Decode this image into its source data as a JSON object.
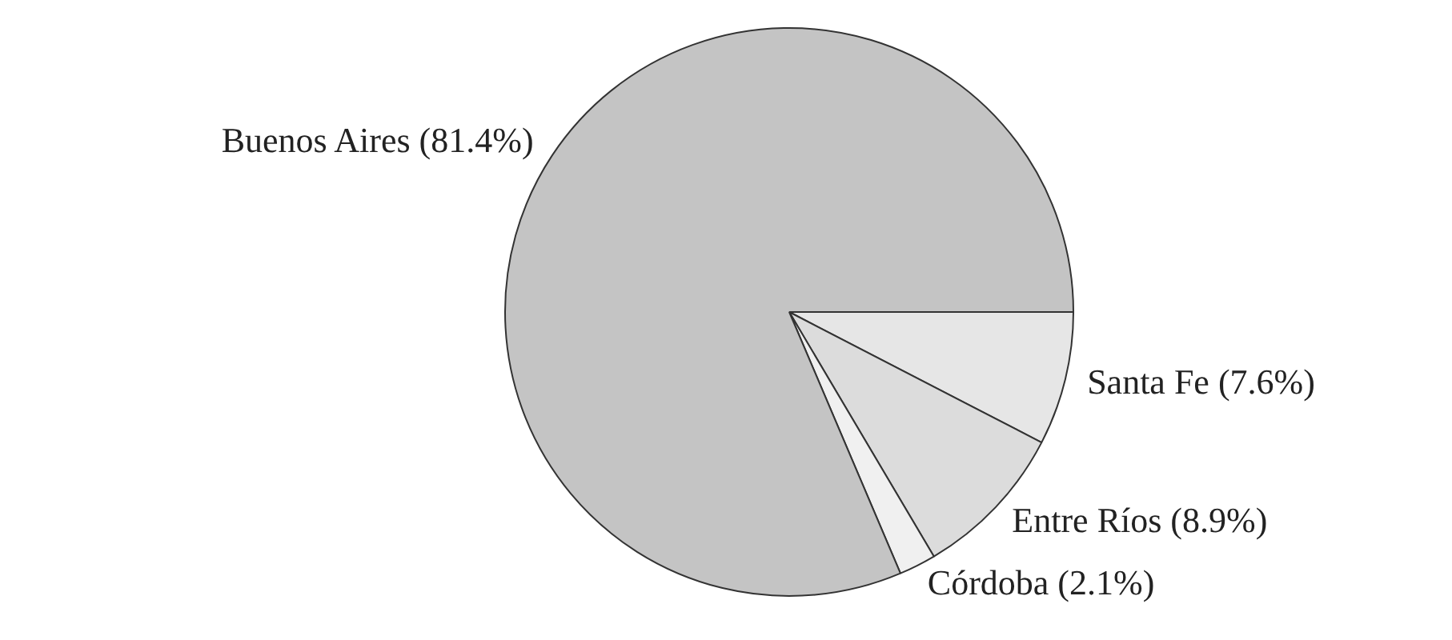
{
  "chart_data": {
    "type": "pie",
    "categories": [
      "Santa Fe",
      "Entre Ríos",
      "Córdoba",
      "Buenos Aires"
    ],
    "values": [
      7.6,
      8.9,
      2.1,
      81.4
    ],
    "value_labels": [
      "(7.6%)",
      "(8.9%)",
      "(2.1%)",
      "(81.4%)"
    ],
    "colors": [
      "#e6e6e6",
      "#dcdcdc",
      "#f0f0f0",
      "#c4c4c4"
    ],
    "legend": false
  }
}
